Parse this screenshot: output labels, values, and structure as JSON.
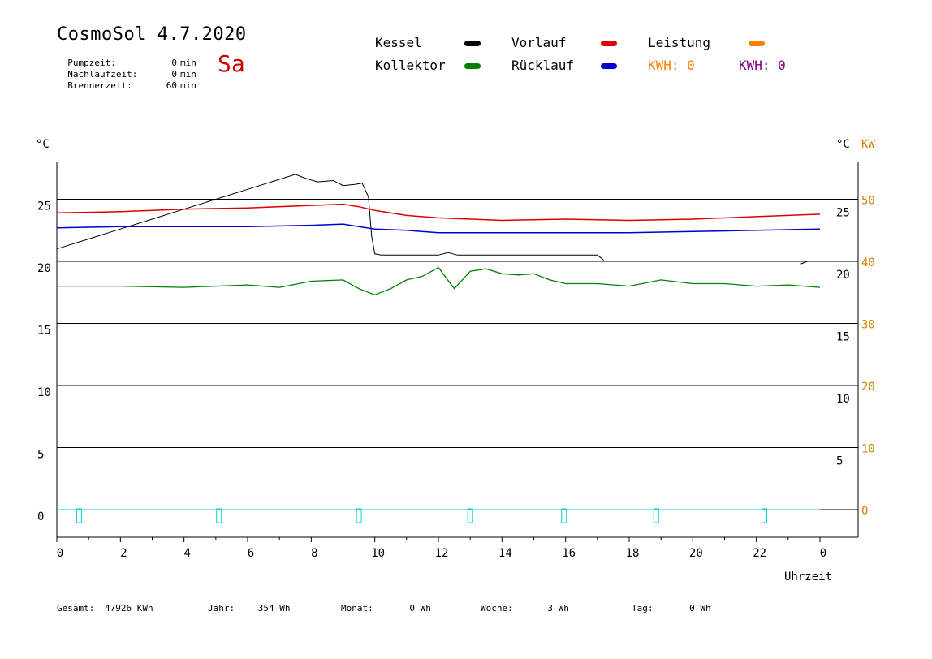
{
  "header": {
    "title": "CosmoSol 4.7.2020",
    "day": "Sa",
    "info": [
      {
        "label": "Pumpzeit:",
        "value": "0",
        "unit": "min"
      },
      {
        "label": "Nachlaufzeit:",
        "value": "0",
        "unit": "min"
      },
      {
        "label": "Brennerzeit:",
        "value": "60",
        "unit": "min"
      }
    ]
  },
  "legend": {
    "kessel": "Kessel",
    "vorlauf": "Vorlauf",
    "leistung": "Leistung",
    "kollektor": "Kollektor",
    "ruecklauf": "Rücklauf",
    "kwh1": "KWH: 0",
    "kwh2": "KWH: 0"
  },
  "colors": {
    "kessel": "#000000",
    "vorlauf": "#e00000",
    "leistung": "#ff8000",
    "kollektor": "#008000",
    "ruecklauf": "#0000d0",
    "kwh2": "#800080",
    "pump": "#00d0d0",
    "kw_axis": "#d08000"
  },
  "footer": [
    {
      "label": "Gesamt:",
      "value": "47926 KWh"
    },
    {
      "label": "Jahr:",
      "value": "354 Wh"
    },
    {
      "label": "Monat:",
      "value": "0 Wh"
    },
    {
      "label": "Woche:",
      "value": "3 Wh"
    },
    {
      "label": "Tag:",
      "value": "0 Wh"
    }
  ],
  "chart_data": {
    "type": "line",
    "xlabel": "Uhrzeit",
    "ylabel_left": "°C",
    "ylabel_right": "°C",
    "ylabel_right2": "KW",
    "xlim": [
      0,
      24
    ],
    "ylim": [
      -2,
      28
    ],
    "x_ticks": [
      "0",
      "2",
      "4",
      "6",
      "8",
      "10",
      "12",
      "14",
      "16",
      "18",
      "20",
      "22",
      "0"
    ],
    "y_ticks_left": [
      0,
      5,
      10,
      15,
      20,
      25
    ],
    "y_ticks_right": [
      5,
      10,
      15,
      20,
      25
    ],
    "y_ticks_kw": [
      0,
      10,
      20,
      30,
      40,
      50
    ],
    "grid_lines": [
      0,
      5,
      10,
      15,
      20,
      25
    ],
    "series": [
      {
        "name": "Kessel",
        "x": [
          0,
          1,
          2,
          3,
          4,
          5,
          6,
          7,
          7.5,
          7.8,
          8.2,
          8.7,
          9.0,
          9.4,
          9.6,
          9.8,
          9.9,
          10.0,
          10.2,
          11,
          12,
          12.3,
          12.6,
          13,
          14,
          15,
          16,
          17,
          17.2
        ],
        "y": [
          21.0,
          21.8,
          22.6,
          23.4,
          24.2,
          25.0,
          25.8,
          26.6,
          27.0,
          26.7,
          26.4,
          26.5,
          26.1,
          26.2,
          26.3,
          25.2,
          22.0,
          20.6,
          20.5,
          20.5,
          20.5,
          20.7,
          20.5,
          20.5,
          20.5,
          20.5,
          20.5,
          20.5,
          20.1
        ]
      },
      {
        "name": "Kessel (Ende)",
        "x": [
          23.4,
          23.6,
          24.0
        ],
        "y": [
          19.8,
          20.0,
          20.0
        ]
      },
      {
        "name": "Vorlauf",
        "x": [
          0,
          2,
          4,
          6,
          8,
          9,
          9.5,
          10,
          11,
          12,
          14,
          16,
          18,
          20,
          22,
          24
        ],
        "y": [
          23.9,
          24.0,
          24.2,
          24.3,
          24.5,
          24.6,
          24.4,
          24.1,
          23.7,
          23.5,
          23.3,
          23.4,
          23.3,
          23.4,
          23.6,
          23.8
        ]
      },
      {
        "name": "Rücklauf",
        "x": [
          0,
          2,
          4,
          6,
          8,
          9,
          9.5,
          10,
          11,
          12,
          14,
          16,
          18,
          20,
          22,
          24
        ],
        "y": [
          22.7,
          22.8,
          22.8,
          22.8,
          22.9,
          23.0,
          22.8,
          22.6,
          22.5,
          22.3,
          22.3,
          22.3,
          22.3,
          22.4,
          22.5,
          22.6
        ]
      },
      {
        "name": "Kollektor",
        "x": [
          0,
          2,
          4,
          6,
          7,
          8,
          9,
          9.5,
          10,
          10.5,
          11,
          11.5,
          12,
          12.5,
          13,
          13.5,
          14,
          14.5,
          15,
          15.5,
          16,
          17,
          18,
          19,
          20,
          21,
          22,
          23,
          24
        ],
        "y": [
          18.0,
          18.0,
          17.9,
          18.1,
          17.9,
          18.4,
          18.5,
          17.8,
          17.3,
          17.8,
          18.5,
          18.8,
          19.5,
          17.8,
          19.2,
          19.4,
          19.0,
          18.9,
          19.0,
          18.5,
          18.2,
          18.2,
          18.0,
          18.5,
          18.2,
          18.2,
          18.0,
          18.1,
          17.9
        ]
      },
      {
        "name": "Pumpe",
        "x": [
          0,
          24
        ],
        "y": [
          0,
          0
        ]
      }
    ],
    "pump_markers_x": [
      0.7,
      5.1,
      9.5,
      13,
      15.95,
      18.85,
      22.25
    ]
  }
}
